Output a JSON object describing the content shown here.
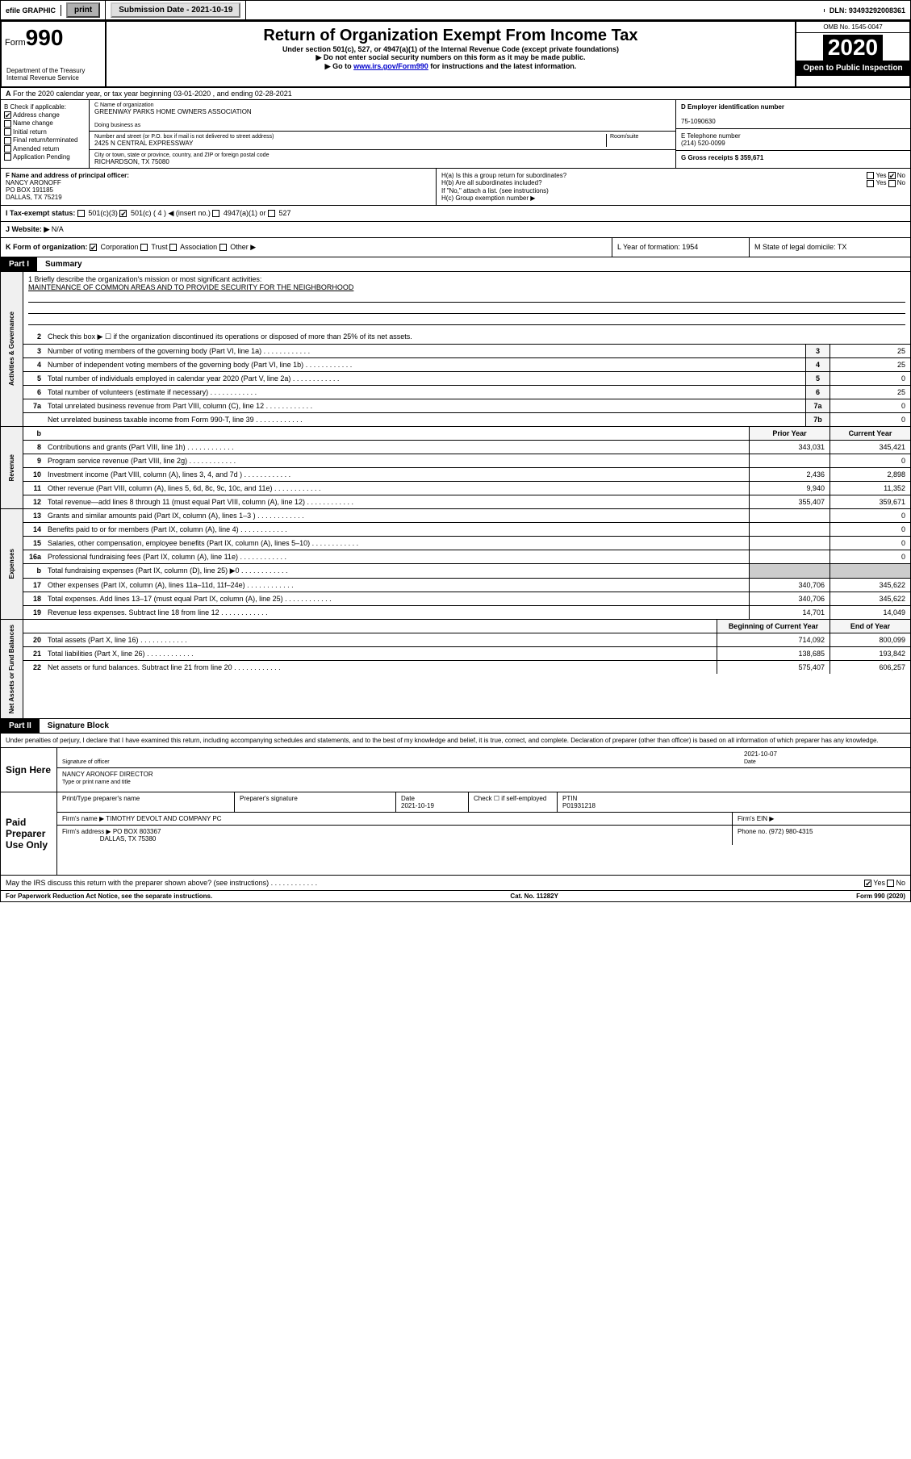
{
  "topbar": {
    "efile": "efile GRAPHIC",
    "print": "print",
    "sub_lbl": "Submission Date - 2021-10-19",
    "dln_lbl": "DLN: 93493292008361"
  },
  "header": {
    "form_prefix": "Form",
    "form_num": "990",
    "title": "Return of Organization Exempt From Income Tax",
    "sub1": "Under section 501(c), 527, or 4947(a)(1) of the Internal Revenue Code (except private foundations)",
    "sub2": "▶ Do not enter social security numbers on this form as it may be made public.",
    "sub3_pre": "▶ Go to ",
    "sub3_link": "www.irs.gov/Form990",
    "sub3_post": " for instructions and the latest information.",
    "omb": "OMB No. 1545-0047",
    "year": "2020",
    "inspect": "Open to Public Inspection",
    "dept": "Department of the Treasury\nInternal Revenue Service"
  },
  "row_a": "For the 2020 calendar year, or tax year beginning 03-01-2020   , and ending 02-28-2021",
  "col_b": {
    "hdr": "B Check if applicable:",
    "addr": "Address change",
    "name": "Name change",
    "init": "Initial return",
    "final": "Final return/terminated",
    "amend": "Amended return",
    "app": "Application Pending"
  },
  "col_c": {
    "name_lbl": "C Name of organization",
    "name": "GREENWAY PARKS HOME OWNERS ASSOCIATION",
    "dba_lbl": "Doing business as",
    "street_lbl": "Number and street (or P.O. box if mail is not delivered to street address)",
    "room_lbl": "Room/suite",
    "street": "2425 N CENTRAL EXPRESSWAY",
    "city_lbl": "City or town, state or province, country, and ZIP or foreign postal code",
    "city": "RICHARDSON, TX  75080"
  },
  "col_d": {
    "ein_lbl": "D Employer identification number",
    "ein": "75-1090630",
    "tel_lbl": "E Telephone number",
    "tel": "(214) 520-0099",
    "gross_lbl": "G Gross receipts $ 359,671"
  },
  "sec_f": {
    "lbl": "F  Name and address of principal officer:",
    "name": "NANCY ARONOFF",
    "addr1": "PO BOX 191185",
    "addr2": "DALLAS, TX  75219"
  },
  "sec_h": {
    "ha": "H(a)  Is this a group return for subordinates?",
    "hb": "H(b)  Are all subordinates included?",
    "hb2": "If \"No,\" attach a list. (see instructions)",
    "hc": "H(c)  Group exemption number ▶",
    "yes": "Yes",
    "no": "No"
  },
  "row_i": {
    "lbl": "I    Tax-exempt status:",
    "o1": "501(c)(3)",
    "o2": "501(c) ( 4 ) ◀ (insert no.)",
    "o3": "4947(a)(1) or",
    "o4": "527"
  },
  "row_j": {
    "lbl": "J   Website: ▶",
    "val": "N/A"
  },
  "row_k": {
    "lbl": "K Form of organization:",
    "corp": "Corporation",
    "trust": "Trust",
    "assoc": "Association",
    "other": "Other ▶"
  },
  "row_l": {
    "lbl": "L Year of formation: 1954"
  },
  "row_m": {
    "lbl": "M State of legal domicile: TX"
  },
  "part1": {
    "num": "Part I",
    "title": "Summary"
  },
  "gov": {
    "label": "Activities & Governance",
    "q1": "1  Briefly describe the organization's mission or most significant activities:",
    "q1v": "MAINTENANCE OF COMMON AREAS AND TO PROVIDE SECURITY FOR THE NEIGHBORHOOD",
    "q2": "Check this box ▶ ☐  if the organization discontinued its operations or disposed of more than 25% of its net assets.",
    "rows": [
      {
        "n": "3",
        "t": "Number of voting members of the governing body (Part VI, line 1a)",
        "b": "3",
        "v": "25"
      },
      {
        "n": "4",
        "t": "Number of independent voting members of the governing body (Part VI, line 1b)",
        "b": "4",
        "v": "25"
      },
      {
        "n": "5",
        "t": "Total number of individuals employed in calendar year 2020 (Part V, line 2a)",
        "b": "5",
        "v": "0"
      },
      {
        "n": "6",
        "t": "Total number of volunteers (estimate if necessary)",
        "b": "6",
        "v": "25"
      },
      {
        "n": "7a",
        "t": "Total unrelated business revenue from Part VIII, column (C), line 12",
        "b": "7a",
        "v": "0"
      },
      {
        "n": "",
        "t": "Net unrelated business taxable income from Form 990-T, line 39",
        "b": "7b",
        "v": "0"
      }
    ]
  },
  "rev": {
    "label": "Revenue",
    "hdr_prior": "Prior Year",
    "hdr_curr": "Current Year",
    "rows": [
      {
        "n": "8",
        "t": "Contributions and grants (Part VIII, line 1h)",
        "p": "343,031",
        "c": "345,421"
      },
      {
        "n": "9",
        "t": "Program service revenue (Part VIII, line 2g)",
        "p": "",
        "c": "0"
      },
      {
        "n": "10",
        "t": "Investment income (Part VIII, column (A), lines 3, 4, and 7d )",
        "p": "2,436",
        "c": "2,898"
      },
      {
        "n": "11",
        "t": "Other revenue (Part VIII, column (A), lines 5, 6d, 8c, 9c, 10c, and 11e)",
        "p": "9,940",
        "c": "11,352"
      },
      {
        "n": "12",
        "t": "Total revenue—add lines 8 through 11 (must equal Part VIII, column (A), line 12)",
        "p": "355,407",
        "c": "359,671"
      }
    ]
  },
  "exp": {
    "label": "Expenses",
    "rows": [
      {
        "n": "13",
        "t": "Grants and similar amounts paid (Part IX, column (A), lines 1–3 )",
        "p": "",
        "c": "0"
      },
      {
        "n": "14",
        "t": "Benefits paid to or for members (Part IX, column (A), line 4)",
        "p": "",
        "c": "0"
      },
      {
        "n": "15",
        "t": "Salaries, other compensation, employee benefits (Part IX, column (A), lines 5–10)",
        "p": "",
        "c": "0"
      },
      {
        "n": "16a",
        "t": "Professional fundraising fees (Part IX, column (A), line 11e)",
        "p": "",
        "c": "0"
      },
      {
        "n": "b",
        "t": "Total fundraising expenses (Part IX, column (D), line 25) ▶0",
        "p": "—",
        "c": "—"
      },
      {
        "n": "17",
        "t": "Other expenses (Part IX, column (A), lines 11a–11d, 11f–24e)",
        "p": "340,706",
        "c": "345,622"
      },
      {
        "n": "18",
        "t": "Total expenses. Add lines 13–17 (must equal Part IX, column (A), line 25)",
        "p": "340,706",
        "c": "345,622"
      },
      {
        "n": "19",
        "t": "Revenue less expenses. Subtract line 18 from line 12",
        "p": "14,701",
        "c": "14,049"
      }
    ]
  },
  "net": {
    "label": "Net Assets or Fund Balances",
    "hdr_beg": "Beginning of Current Year",
    "hdr_end": "End of Year",
    "rows": [
      {
        "n": "20",
        "t": "Total assets (Part X, line 16)",
        "p": "714,092",
        "c": "800,099"
      },
      {
        "n": "21",
        "t": "Total liabilities (Part X, line 26)",
        "p": "138,685",
        "c": "193,842"
      },
      {
        "n": "22",
        "t": "Net assets or fund balances. Subtract line 21 from line 20",
        "p": "575,407",
        "c": "606,257"
      }
    ]
  },
  "part2": {
    "num": "Part II",
    "title": "Signature Block"
  },
  "perjury": "Under penalties of perjury, I declare that I have examined this return, including accompanying schedules and statements, and to the best of my knowledge and belief, it is true, correct, and complete. Declaration of preparer (other than officer) is based on all information of which preparer has any knowledge.",
  "sign": {
    "here": "Sign Here",
    "sig_lbl": "Signature of officer",
    "date_lbl": "Date",
    "date": "2021-10-07",
    "name": "NANCY ARONOFF  DIRECTOR",
    "name_lbl": "Type or print name and title"
  },
  "paid": {
    "here": "Paid Preparer Use Only",
    "prep_lbl": "Print/Type preparer's name",
    "sig_lbl": "Preparer's signature",
    "date_lbl": "Date",
    "date": "2021-10-19",
    "chk_lbl": "Check ☐ if self-employed",
    "ptin_lbl": "PTIN",
    "ptin": "P01931218",
    "firm_lbl": "Firm's name   ▶",
    "firm": "TIMOTHY DEVOLT AND COMPANY PC",
    "ein_lbl": "Firm's EIN ▶",
    "addr_lbl": "Firm's address ▶",
    "addr1": "PO BOX 803367",
    "addr2": "DALLAS, TX  75380",
    "phone_lbl": "Phone no. (972) 980-4315"
  },
  "discuss": "May the IRS discuss this return with the preparer shown above? (see instructions)",
  "footer": {
    "left": "For Paperwork Reduction Act Notice, see the separate instructions.",
    "mid": "Cat. No. 11282Y",
    "right": "Form 990 (2020)"
  }
}
